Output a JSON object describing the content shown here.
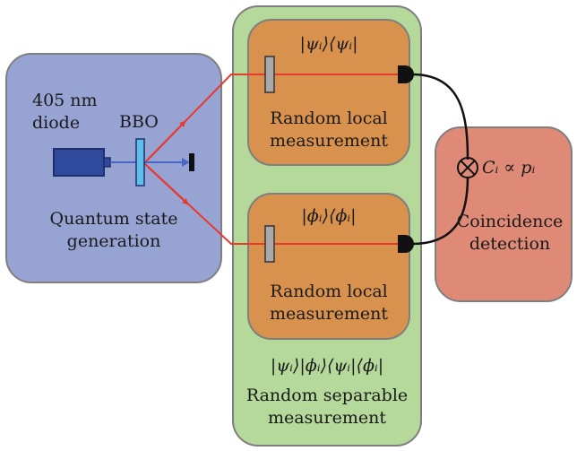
{
  "source": {
    "laser_lines": [
      "405 nm",
      "diode"
    ],
    "crystal_label": "BBO",
    "caption_lines": [
      "Quantum state",
      "generation"
    ],
    "colors": {
      "panel": "#97a3d3",
      "laser_body": "#2f4a9c",
      "crystal": "#5ec0ea",
      "pump_beam": "#4668c4"
    }
  },
  "measurement_top": {
    "projector": "|ψᵢ⟩⟨ψᵢ|",
    "caption_lines": [
      "Random local",
      "measurement"
    ]
  },
  "measurement_bottom": {
    "projector": "|ϕᵢ⟩⟨ϕᵢ|",
    "caption_lines": [
      "Random local",
      "measurement"
    ]
  },
  "separable": {
    "projector": "|ψᵢ⟩|ϕᵢ⟩⟨ψᵢ|⟨ϕᵢ|",
    "caption_lines": [
      "Random separable",
      "measurement"
    ],
    "colors": {
      "panel": "#b4d99a",
      "sub_panel": "#d8924e"
    }
  },
  "coincidence": {
    "relation": "Cᵢ ∝ pᵢ",
    "caption_lines": [
      "Coincidence",
      "detection"
    ],
    "colors": {
      "panel": "#de8a77"
    }
  },
  "beams": {
    "photon_color": "#e8392d",
    "fiber_color": "#111111"
  }
}
